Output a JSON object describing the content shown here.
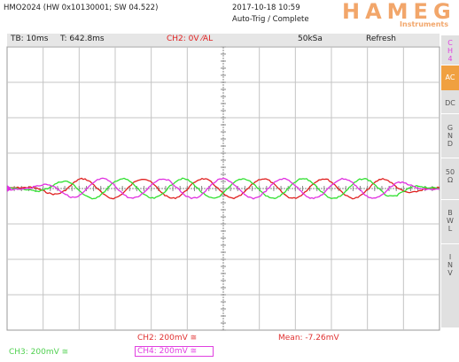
{
  "header": {
    "model": "HMO2024 (HW 0x10130001; SW 04.522)",
    "datetime": "2017-10-18 10:59",
    "trigger_status": "Auto-Trig / Complete",
    "logo": "HAMEG",
    "logo_subtitle": "Instruments"
  },
  "status_bar": {
    "timebase": "TB: 10ms",
    "trigger_time": "T: 642.8ms",
    "trigger": "CH2: 0V ⁄AL",
    "sample_rate": "50kSa",
    "mode": "Refresh"
  },
  "side_menu": {
    "channel": "CH4",
    "items": [
      "AC",
      "DC",
      "GND",
      "50Ω",
      "BWL",
      "INV"
    ]
  },
  "footer": {
    "ch2_scale": "CH2: 200mV ≅",
    "mean": "Mean: -7.26mV",
    "ch3_scale": "CH3: 200mV ≅",
    "ch4_scale": "CH4: 200mV ≅"
  }
}
